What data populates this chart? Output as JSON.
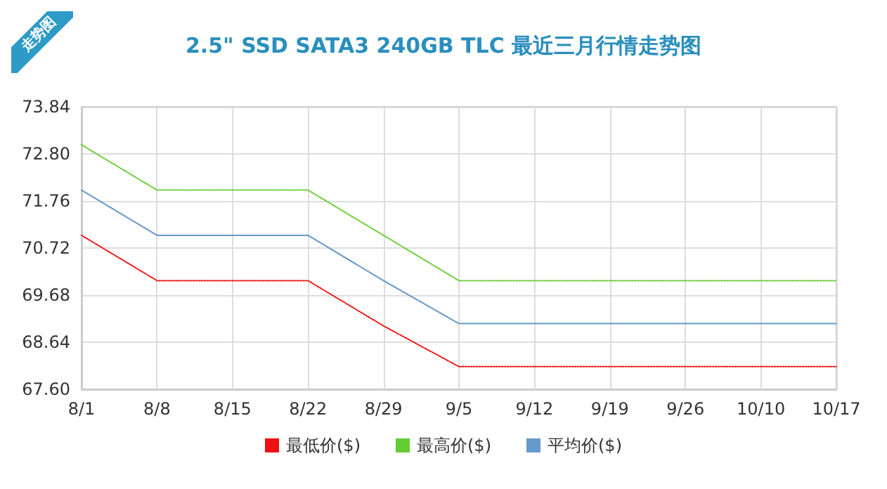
{
  "chart_data": {
    "type": "line",
    "title": "2.5\" SSD SATA3 240GB TLC 最近三月行情走势图",
    "annotations": [
      "走势图"
    ],
    "categories": [
      "8/1",
      "8/8",
      "8/15",
      "8/22",
      "8/29",
      "9/5",
      "9/12",
      "9/19",
      "9/26",
      "10/10",
      "10/17"
    ],
    "series": [
      {
        "name": "最低价($)",
        "color": "#ee1111",
        "line_style": "dotted",
        "values": [
          71.0,
          70.0,
          70.0,
          70.0,
          69.0,
          68.1,
          68.1,
          68.1,
          68.1,
          68.1,
          68.1
        ]
      },
      {
        "name": "最高价($)",
        "color": "#66cc33",
        "line_style": "dotted",
        "values": [
          73.0,
          72.0,
          72.0,
          72.0,
          71.0,
          70.0,
          70.0,
          70.0,
          70.0,
          70.0,
          70.0
        ]
      },
      {
        "name": "平均价($)",
        "color": "#6699cc",
        "line_style": "solid",
        "values": [
          72.0,
          71.0,
          71.0,
          71.0,
          70.0,
          69.05,
          69.05,
          69.05,
          69.05,
          69.05,
          69.05
        ]
      }
    ],
    "ylim": [
      67.6,
      73.84
    ],
    "yticks": [
      {
        "value": 67.6,
        "label": "67.60"
      },
      68.64,
      69.68,
      70.72,
      71.76,
      {
        "value": 72.8,
        "label": "72.80"
      },
      73.84
    ],
    "grid": true,
    "legend": "bottom",
    "marker": "none"
  }
}
